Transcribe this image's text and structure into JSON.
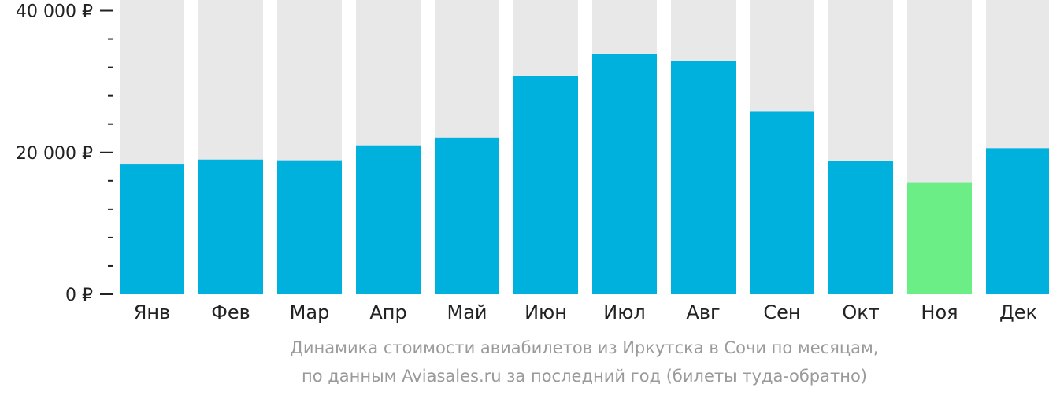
{
  "chart_data": {
    "type": "bar",
    "categories": [
      "Янв",
      "Фев",
      "Мар",
      "Апр",
      "Май",
      "Июн",
      "Июл",
      "Авг",
      "Сен",
      "Окт",
      "Ноя",
      "Дек"
    ],
    "values": [
      18300,
      19000,
      18900,
      21000,
      22100,
      30800,
      33900,
      32900,
      25800,
      18800,
      15800,
      20600
    ],
    "ylim": [
      0,
      41500
    ],
    "yticks": [
      {
        "value": 0,
        "label": "0 ₽"
      },
      {
        "value": 20000,
        "label": "20 000 ₽"
      },
      {
        "value": 40000,
        "label": "40 000 ₽"
      }
    ],
    "minor_tick_step": 4000,
    "highlight_index": 10,
    "colors": {
      "bar": "#00b0dd",
      "highlight": "#6bee85",
      "background_bar": "#e8e8e8",
      "axis": "#222222"
    }
  },
  "caption": {
    "line1": "Динамика стоимости авиабилетов из Иркутска в Сочи по месяцам,",
    "line2": "по данным Aviasales.ru за последний год (билеты туда-обратно)"
  }
}
